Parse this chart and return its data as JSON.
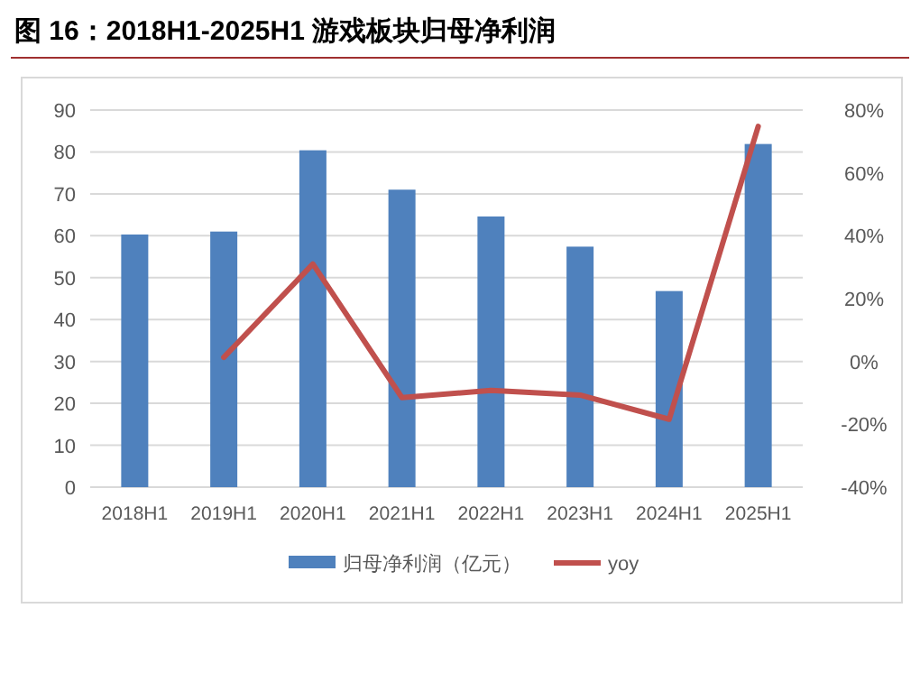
{
  "chart_data": {
    "type": "bar",
    "title": "图 16：2018H1-2025H1 游戏板块归母净利润",
    "categories": [
      "2018H1",
      "2019H1",
      "2020H1",
      "2021H1",
      "2022H1",
      "2023H1",
      "2024H1",
      "2025H1"
    ],
    "series": [
      {
        "name": "归母净利润（亿元）",
        "color": "#4f81bd",
        "values": [
          60.3,
          61.0,
          80.4,
          71.0,
          64.6,
          57.4,
          46.8,
          81.9
        ]
      },
      {
        "name": "yoy",
        "type": "line",
        "axis": "y2",
        "color": "#c0504d",
        "values": [
          null,
          1.3,
          31,
          -11.5,
          -9.2,
          -10.7,
          -18.4,
          74.8
        ]
      }
    ],
    "ylim": [
      0,
      90
    ],
    "yticks": [
      0,
      10,
      20,
      30,
      40,
      50,
      60,
      70,
      80,
      90
    ],
    "y2lim": [
      -40,
      80
    ],
    "y2ticks": [
      {
        "value": -40,
        "label": "-40%"
      },
      {
        "value": -20,
        "label": "-20%"
      },
      {
        "value": 0,
        "label": "0%"
      },
      {
        "value": 20,
        "label": "20%"
      },
      {
        "value": 40,
        "label": "40%"
      },
      {
        "value": 60,
        "label": "60%"
      },
      {
        "value": 80,
        "label": "80%"
      }
    ],
    "grid": "y",
    "legend": "bottom",
    "marker": "none"
  }
}
